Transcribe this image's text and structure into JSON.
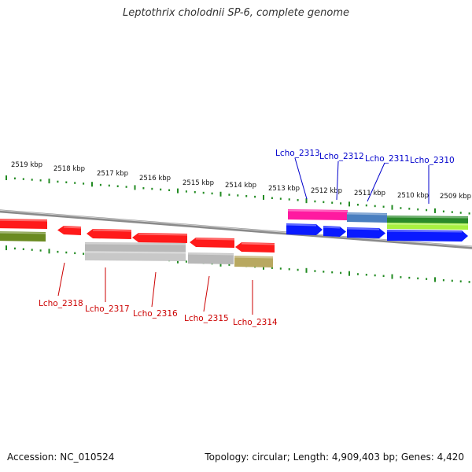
{
  "title": "Leptothrix cholodnii SP-6, complete genome",
  "footer": {
    "accession": "Accession: NC_010524",
    "summary": "Topology: circular; Length: 4,909,403 bp; Genes: 4,420"
  },
  "scale_labels": [
    "2519 kbp",
    "2518 kbp",
    "2517 kbp",
    "2516 kbp",
    "2515 kbp",
    "2514 kbp",
    "2513 kbp",
    "2512 kbp",
    "2511 kbp",
    "2510 kbp",
    "2509 kbp"
  ],
  "gene_labels_top": [
    "Lcho_2313",
    "Lcho_2312",
    "Lcho_2311",
    "Lcho_2310"
  ],
  "gene_labels_bottom": [
    "Lcho_2318",
    "Lcho_2317",
    "Lcho_2316",
    "Lcho_2315",
    "Lcho_2314"
  ],
  "colors": {
    "forward_label": "#0000cc",
    "reverse_label": "#cc0000",
    "tick": "#228b22",
    "backbone": "#777777",
    "red": "#ff1a1a",
    "blue": "#0a1aff",
    "magenta": "#ff1aa0",
    "steel": "#4a7fc0",
    "dark_green": "#2a8a2a",
    "lime": "#a8f040",
    "olive": "#6a8a20",
    "grey": "#b8b8b8",
    "khaki": "#b8a860"
  }
}
